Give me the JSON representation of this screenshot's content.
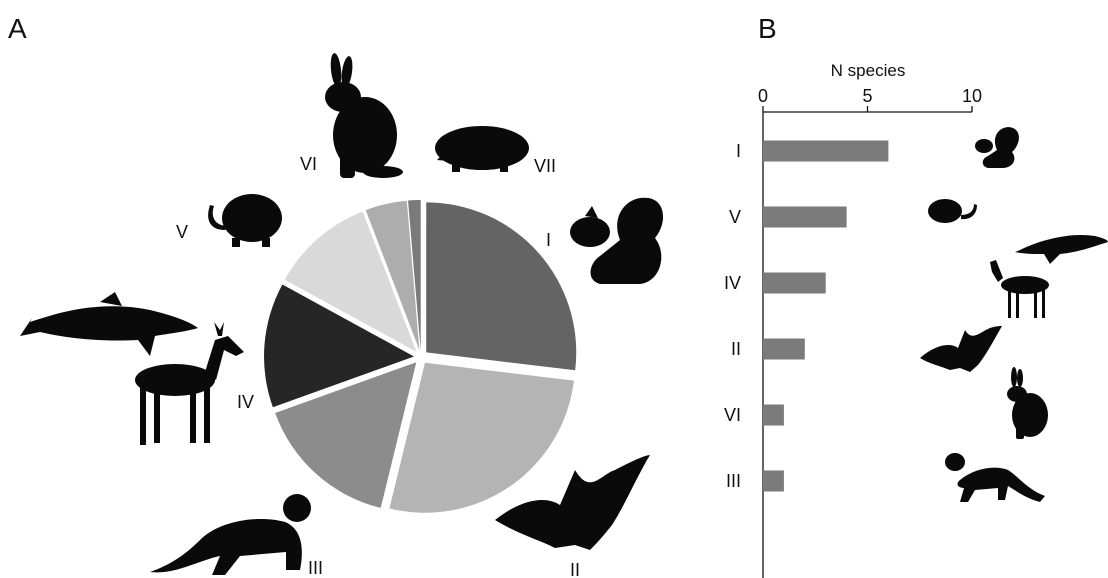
{
  "colors": {
    "I": "#646464",
    "II": "#b4b4b4",
    "III": "#8c8c8c",
    "IV": "#262626",
    "V": "#d9d9d9",
    "VI": "#adadad",
    "VII": "#7a7a7a",
    "bar": "#7b7b7b",
    "silhouette": "#0a0a0a"
  },
  "icons": {
    "I": "squirrel-icon",
    "II": "bat-icon",
    "III": "marten-icon",
    "IV": "deer-and-dolphin-icon",
    "V": "mole-icon",
    "VI": "hare-icon",
    "VII": "hedgehog-icon"
  },
  "chart_data": [
    {
      "panel": "A",
      "type": "pie",
      "slices": [
        {
          "label": "I",
          "value": 6
        },
        {
          "label": "II",
          "value": 6
        },
        {
          "label": "III",
          "value": 3.5
        },
        {
          "label": "IV",
          "value": 3
        },
        {
          "label": "V",
          "value": 2.5
        },
        {
          "label": "VI",
          "value": 1
        },
        {
          "label": "VII",
          "value": 0.3
        }
      ]
    },
    {
      "panel": "B",
      "type": "bar",
      "orientation": "horizontal",
      "xlabel": "N species",
      "xlim": [
        0,
        10
      ],
      "xticks": [
        "0",
        "5",
        "10"
      ],
      "categories": [
        "I",
        "V",
        "IV",
        "II",
        "VI",
        "III"
      ],
      "values": [
        6,
        4,
        3,
        2,
        1,
        1
      ]
    }
  ]
}
